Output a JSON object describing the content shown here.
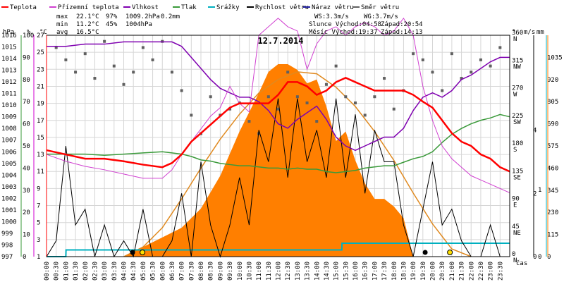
{
  "chart_data": {
    "type": "line",
    "title": "12.7.2014",
    "legend": [
      {
        "label": "Teplota",
        "color": "#ff0000"
      },
      {
        "label": "Přízemní teplota",
        "color": "#d040d0"
      },
      {
        "label": "Vlhkost",
        "color": "#7f00b0"
      },
      {
        "label": "Tlak",
        "color": "#3a9a3a"
      },
      {
        "label": "Srážky",
        "color": "#00b0c0"
      },
      {
        "label": "Rychlost větru",
        "color": "#000000"
      },
      {
        "label": "Náraz větru",
        "color": "#2020a0"
      },
      {
        "label": "Směr větru",
        "color": "#606060"
      }
    ],
    "stats": {
      "max": {
        "label": "max",
        "temp": "22.1°C",
        "hum": "97%",
        "press": "1009.2hPa",
        "rain": "0.2mm"
      },
      "min": {
        "label": "min",
        "temp": "11.2°C",
        "hum": "45%",
        "press": "1004hPa"
      },
      "avg": {
        "label": "avg",
        "temp": "16.5°C"
      }
    },
    "wind_info": {
      "ws": "WS:3.3m/s",
      "wg": "WG:3.7m/s"
    },
    "sun_info": {
      "rise": "Slunce Východ:04:58",
      "set": "Západ:20:54"
    },
    "moon_info": {
      "rise": "Měsíc  Východ:19:37",
      "set": "Západ:14:13"
    },
    "axes": {
      "hpa": {
        "unit": "hPa",
        "ticks": [
          "997",
          "998",
          "999",
          "1000",
          "1001",
          "1002",
          "1003",
          "1004",
          "1005",
          "1006",
          "1007",
          "1008",
          "1009",
          "1010",
          "1011",
          "1012",
          "1013",
          "1014",
          "1015",
          "1016"
        ],
        "range": [
          997,
          1016
        ]
      },
      "pct": {
        "unit": "%",
        "ticks": [
          "0",
          "10",
          "20",
          "30",
          "40",
          "50",
          "60",
          "70",
          "80",
          "90",
          "100"
        ],
        "range": [
          0,
          100
        ]
      },
      "temp": {
        "unit": "°C",
        "ticks": [
          "1",
          "3",
          "5",
          "7",
          "9",
          "11",
          "13",
          "15",
          "17",
          "19",
          "21",
          "23",
          "25",
          "27"
        ],
        "range": [
          1,
          27
        ]
      },
      "dir": {
        "unit": "°",
        "ticks": [
          {
            "deg": "0",
            "dir": "N"
          },
          {
            "deg": "45",
            "dir": "NE"
          },
          {
            "deg": "90",
            "dir": "E"
          },
          {
            "deg": "135",
            "dir": "SE"
          },
          {
            "deg": "180",
            "dir": "S"
          },
          {
            "deg": "225",
            "dir": "SW"
          },
          {
            "deg": "270",
            "dir": "W"
          },
          {
            "deg": "315",
            "dir": "NW"
          },
          {
            "deg": "360",
            "dir": "N"
          }
        ],
        "range": [
          0,
          360
        ]
      },
      "ms": {
        "unit": "m/s",
        "ticks": [
          "0",
          "2",
          "4"
        ],
        "range": [
          0,
          7
        ]
      },
      "mm": {
        "unit": "mm",
        "ticks": [
          "0",
          "1"
        ],
        "range": [
          0,
          1
        ]
      },
      "rad": {
        "ticks": [
          "0",
          "115",
          "230",
          "345",
          "460",
          "575",
          "690",
          "805",
          "920",
          "1035"
        ],
        "range": [
          0,
          1150
        ]
      },
      "x_ticks": [
        "00:00",
        "00:30",
        "01:00",
        "01:30",
        "02:00",
        "02:30",
        "03:00",
        "03:30",
        "04:00",
        "04:30",
        "05:00",
        "05:30",
        "06:00",
        "06:30",
        "07:00",
        "07:30",
        "08:00",
        "08:30",
        "09:00",
        "09:30",
        "10:00",
        "10:30",
        "11:00",
        "11:30",
        "12:00",
        "12:30",
        "13:00",
        "13:30",
        "14:00",
        "14:30",
        "15:00",
        "15:30",
        "16:00",
        "16:30",
        "17:00",
        "17:30",
        "18:00",
        "18:30",
        "19:00",
        "19:30",
        "20:00",
        "20:30",
        "21:00",
        "21:30",
        "22:00",
        "22:30",
        "23:00",
        "23:30"
      ],
      "x_label": "čas"
    },
    "series": {
      "temperature": {
        "x": [
          0,
          1,
          2,
          3,
          4,
          5,
          6,
          6.5,
          7,
          7.5,
          8,
          8.5,
          9,
          9.5,
          10,
          10.5,
          11,
          11.5,
          12,
          12.5,
          13,
          13.5,
          14,
          14.5,
          15,
          15.5,
          16,
          16.5,
          17,
          17.5,
          18,
          18.5,
          19,
          19.5,
          20,
          20.5,
          21,
          21.5,
          22,
          22.5,
          23,
          23.5,
          24
        ],
        "y": [
          13.5,
          13,
          12.5,
          12.5,
          12.2,
          11.8,
          11.5,
          12,
          13,
          14.5,
          15.5,
          16.5,
          17.5,
          18.5,
          19,
          19,
          19,
          19,
          20,
          21.5,
          21.5,
          21,
          20,
          20.5,
          21.5,
          22,
          21.5,
          21,
          20.5,
          20.5,
          20.5,
          20.5,
          20,
          19.2,
          18.5,
          17,
          15.5,
          14.5,
          14,
          13,
          12.5,
          11.5,
          11
        ]
      },
      "ground_temp": {
        "x": [
          0,
          1,
          2,
          3,
          4,
          5,
          6,
          6.5,
          7,
          7.5,
          8,
          8.5,
          9,
          9.5,
          10,
          10.5,
          11,
          11.5,
          12,
          12.5,
          13,
          13.5,
          14,
          14.5,
          15,
          15.5,
          16,
          16.5,
          17,
          17.5,
          18,
          18.5,
          19,
          19.5,
          20,
          20.5,
          21,
          21.5,
          22,
          22.5,
          23,
          23.5,
          24
        ],
        "y": [
          13,
          12.2,
          11.6,
          11.2,
          10.7,
          10.2,
          10.2,
          11.2,
          13,
          14.5,
          16,
          17.5,
          18.5,
          21,
          19,
          18,
          27,
          28,
          29,
          28,
          27.5,
          23,
          26,
          27.5,
          28,
          27,
          28,
          28.5,
          28,
          27,
          27.5,
          29,
          27,
          21,
          17,
          14,
          12.5,
          11.5,
          10.5,
          10,
          9.5,
          9,
          8.5
        ]
      },
      "humidity": {
        "x": [
          0,
          1,
          2,
          3,
          4,
          5,
          6,
          6.5,
          7,
          7.5,
          8,
          8.5,
          9,
          9.5,
          10,
          10.5,
          11,
          11.5,
          12,
          12.5,
          13,
          13.5,
          14,
          14.5,
          15,
          15.5,
          16,
          16.5,
          17,
          17.5,
          18,
          18.5,
          19,
          19.5,
          20,
          20.5,
          21,
          21.5,
          22,
          22.5,
          23,
          23.5,
          24
        ],
        "y": [
          95,
          95,
          96,
          96,
          97,
          97,
          97,
          97,
          95,
          90,
          85,
          80,
          76,
          74,
          72,
          72,
          70,
          66,
          60,
          58,
          62,
          65,
          68,
          62,
          54,
          50,
          48,
          50,
          52,
          54,
          54,
          58,
          66,
          72,
          74,
          72,
          75,
          80,
          82,
          85,
          88,
          90,
          90
        ]
      },
      "pressure": {
        "x": [
          0,
          1,
          2,
          3,
          4,
          5,
          6,
          6.5,
          7,
          7.5,
          8,
          8.5,
          9,
          9.5,
          10,
          10.5,
          11,
          11.5,
          12,
          12.5,
          13,
          13.5,
          14,
          14.5,
          15,
          15.5,
          16,
          16.5,
          17,
          17.5,
          18,
          18.5,
          19,
          19.5,
          20,
          20.5,
          21,
          21.5,
          22,
          22.5,
          23,
          23.5,
          24
        ],
        "y": [
          1005.8,
          1005.8,
          1005.8,
          1005.7,
          1005.8,
          1005.9,
          1006,
          1005.9,
          1005.8,
          1005.6,
          1005.3,
          1005.2,
          1005.0,
          1004.9,
          1004.8,
          1004.8,
          1004.7,
          1004.6,
          1004.6,
          1004.5,
          1004.6,
          1004.5,
          1004.5,
          1004.3,
          1004.2,
          1004.3,
          1004.4,
          1004.6,
          1004.7,
          1004.8,
          1004.8,
          1005.1,
          1005.4,
          1005.6,
          1006.0,
          1006.8,
          1007.5,
          1008.0,
          1008.4,
          1008.7,
          1008.9,
          1009.2,
          1009.0
        ]
      },
      "rain": {
        "x": [
          0,
          1,
          1.01,
          15.3,
          15.31,
          24
        ],
        "y": [
          0,
          0,
          0.1,
          0.1,
          0.2,
          0.2
        ]
      },
      "radiation": {
        "x": [
          0,
          4,
          5,
          6,
          7,
          8,
          9,
          10,
          11,
          11.5,
          12,
          12.5,
          13,
          13.5,
          14,
          14.5,
          15,
          15.5,
          16,
          16.5,
          17,
          17.5,
          18,
          18.5,
          19,
          24
        ],
        "y": [
          0,
          0,
          50,
          100,
          150,
          250,
          420,
          650,
          850,
          960,
          1000,
          1000,
          970,
          900,
          920,
          780,
          600,
          650,
          500,
          380,
          300,
          300,
          260,
          200,
          0,
          0
        ]
      },
      "sun_theoretical": {
        "x": [
          4,
          5,
          6,
          7,
          8,
          9,
          10,
          11,
          12,
          13,
          14,
          15,
          16,
          17,
          18,
          19,
          20,
          21,
          22
        ],
        "y": [
          0,
          50,
          150,
          300,
          460,
          610,
          740,
          850,
          920,
          960,
          950,
          880,
          780,
          650,
          500,
          330,
          170,
          40,
          0
        ]
      },
      "wind_speed": {
        "x": [
          0,
          0.5,
          1,
          1.5,
          2,
          2.5,
          3,
          3.5,
          4,
          4.5,
          5,
          5.5,
          6,
          6.5,
          7,
          7.5,
          8,
          8.5,
          9,
          9.5,
          10,
          10.5,
          11,
          11.5,
          12,
          12.5,
          13,
          13.5,
          14,
          14.5,
          15,
          15.5,
          16,
          16.5,
          17,
          17.5,
          18,
          18.5,
          19,
          19.5,
          20,
          20.5,
          21,
          21.5,
          22,
          22.5,
          23,
          23.5,
          24
        ],
        "y": [
          0,
          0.5,
          3.5,
          1,
          1.5,
          0,
          1,
          0,
          0.5,
          0,
          1.5,
          0,
          0,
          0.5,
          2,
          0,
          3,
          1,
          0,
          1,
          2.5,
          1,
          4,
          3,
          5,
          2.5,
          5,
          3,
          4,
          2.5,
          5,
          2.5,
          4.5,
          2,
          4,
          3,
          3,
          1,
          0,
          1.5,
          3,
          1,
          1.5,
          0.5,
          0,
          0,
          1,
          0,
          0
        ]
      },
      "wind_dir": {
        "x": [
          0.5,
          1,
          1.5,
          2,
          2.5,
          3,
          3.5,
          4,
          4.5,
          5,
          5.5,
          6,
          6.5,
          7,
          7.5,
          8,
          8.5,
          9,
          9.5,
          10,
          10.5,
          11,
          11.5,
          12,
          12.5,
          13,
          13.5,
          14,
          14.5,
          15,
          15.5,
          16,
          16.5,
          17,
          17.5,
          18,
          18.5,
          19,
          19.5,
          20,
          20.5,
          21,
          21.5,
          22,
          22.5,
          23,
          23.5
        ],
        "y": [
          340,
          320,
          300,
          330,
          290,
          350,
          310,
          280,
          300,
          340,
          320,
          350,
          300,
          270,
          230,
          200,
          260,
          230,
          240,
          250,
          220,
          200,
          260,
          240,
          300,
          260,
          250,
          220,
          280,
          310,
          260,
          250,
          230,
          260,
          290,
          240,
          270,
          330,
          320,
          300,
          270,
          330,
          290,
          300,
          320,
          310,
          340
        ]
      }
    },
    "markers": {
      "sunrise_time": 4.97,
      "sunset_time": 20.9,
      "moonrise_time": 19.62,
      "moonset_time": 14.22
    }
  }
}
